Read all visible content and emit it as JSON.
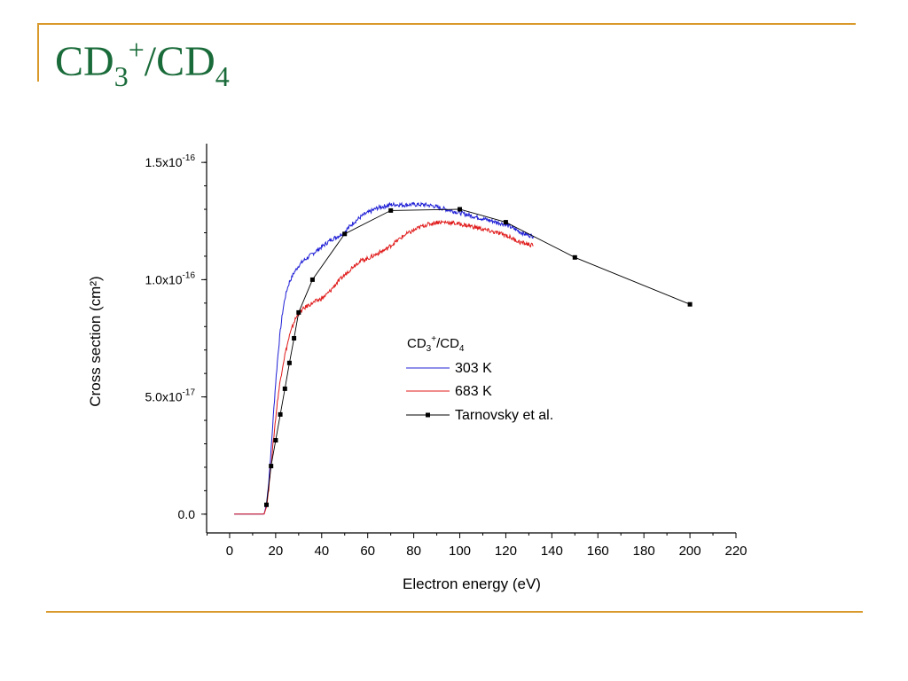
{
  "slide": {
    "title": {
      "base1": "CD",
      "sub1": "3",
      "sup1": "+",
      "slash": "/CD",
      "sub2": "4"
    }
  },
  "colors": {
    "accent_rule": "#d99a2b",
    "title": "#1a6b3a",
    "series_303": "#1f1fd6",
    "series_683": "#e01a1a",
    "series_ref": "#000000"
  },
  "chart_data": {
    "type": "line",
    "title": "",
    "xlabel": "Electron energy (eV)",
    "ylabel": "Cross section (cm²)",
    "xlim": [
      -10,
      220
    ],
    "ylim": [
      -8e-18,
      1.58e-16
    ],
    "x_ticks": [
      0,
      20,
      40,
      60,
      80,
      100,
      120,
      140,
      160,
      180,
      200,
      220
    ],
    "y_ticks": [
      {
        "value": 0.0,
        "label_base": "0.0",
        "label_exp": ""
      },
      {
        "value": 5e-17,
        "label_base": "5.0x10",
        "label_exp": "-17"
      },
      {
        "value": 1e-16,
        "label_base": "1.0x10",
        "label_exp": "-16"
      },
      {
        "value": 1.5e-16,
        "label_base": "1.5x10",
        "label_exp": "-16"
      }
    ],
    "legend": {
      "placement": "center-right",
      "title_base": "CD",
      "title_sub": "3",
      "title_sup": "+",
      "title_rest": "/CD",
      "title_sub2": "4"
    },
    "series": [
      {
        "name": "303 K",
        "style": "noisy-line",
        "x": [
          2,
          14,
          15,
          16,
          17,
          18,
          19,
          20,
          21,
          22,
          23,
          24,
          25,
          26,
          27,
          28,
          29,
          30,
          32,
          34,
          36,
          38,
          40,
          42,
          44,
          46,
          48,
          50,
          52,
          54,
          56,
          58,
          60,
          62,
          64,
          66,
          68,
          70,
          72,
          74,
          76,
          78,
          80,
          82,
          84,
          86,
          88,
          90,
          92,
          94,
          96,
          98,
          100,
          102,
          104,
          106,
          108,
          110,
          112,
          114,
          116,
          118,
          120,
          122,
          124,
          126,
          128,
          130,
          132
        ],
        "y": [
          0,
          0,
          1e-19,
          4e-18,
          1.4e-17,
          2.7e-17,
          4.2e-17,
          5.6e-17,
          6.8e-17,
          7.8e-17,
          8.6e-17,
          9.2e-17,
          9.6e-17,
          9.9e-17,
          1.01e-16,
          1.03e-16,
          1.045e-16,
          1.06e-16,
          1.08e-16,
          1.095e-16,
          1.11e-16,
          1.125e-16,
          1.14e-16,
          1.155e-16,
          1.17e-16,
          1.18e-16,
          1.19e-16,
          1.205e-16,
          1.225e-16,
          1.245e-16,
          1.26e-16,
          1.275e-16,
          1.285e-16,
          1.295e-16,
          1.305e-16,
          1.31e-16,
          1.315e-16,
          1.32e-16,
          1.32e-16,
          1.32e-16,
          1.318e-16,
          1.32e-16,
          1.32e-16,
          1.32e-16,
          1.32e-16,
          1.318e-16,
          1.315e-16,
          1.31e-16,
          1.305e-16,
          1.3e-16,
          1.295e-16,
          1.29e-16,
          1.285e-16,
          1.28e-16,
          1.275e-16,
          1.27e-16,
          1.265e-16,
          1.26e-16,
          1.255e-16,
          1.25e-16,
          1.245e-16,
          1.24e-16,
          1.235e-16,
          1.225e-16,
          1.215e-16,
          1.205e-16,
          1.195e-16,
          1.19e-16,
          1.185e-16
        ]
      },
      {
        "name": "683 K",
        "style": "noisy-line",
        "x": [
          2,
          14,
          15,
          16,
          17,
          18,
          19,
          20,
          21,
          22,
          23,
          24,
          25,
          26,
          27,
          28,
          29,
          30,
          32,
          34,
          36,
          38,
          40,
          42,
          44,
          46,
          48,
          50,
          52,
          54,
          56,
          58,
          60,
          62,
          64,
          66,
          68,
          70,
          72,
          74,
          76,
          78,
          80,
          82,
          84,
          86,
          88,
          90,
          92,
          94,
          96,
          98,
          100,
          102,
          104,
          106,
          108,
          110,
          112,
          114,
          116,
          118,
          120,
          122,
          124,
          126,
          128,
          130,
          132
        ],
        "y": [
          0,
          0,
          1e-19,
          3e-18,
          1.1e-17,
          2.1e-17,
          3.1e-17,
          4.1e-17,
          5e-17,
          5.7e-17,
          6.3e-17,
          6.8e-17,
          7.2e-17,
          7.6e-17,
          7.9e-17,
          8.2e-17,
          8.4e-17,
          8.55e-17,
          8.75e-17,
          8.9e-17,
          9e-17,
          9.1e-17,
          9.2e-17,
          9.35e-17,
          9.55e-17,
          9.8e-17,
          1e-16,
          1.02e-16,
          1.04e-16,
          1.06e-16,
          1.075e-16,
          1.085e-16,
          1.09e-16,
          1.1e-16,
          1.11e-16,
          1.12e-16,
          1.13e-16,
          1.145e-16,
          1.16e-16,
          1.175e-16,
          1.19e-16,
          1.2e-16,
          1.21e-16,
          1.22e-16,
          1.23e-16,
          1.235e-16,
          1.24e-16,
          1.245e-16,
          1.245e-16,
          1.245e-16,
          1.243e-16,
          1.24e-16,
          1.237e-16,
          1.233e-16,
          1.23e-16,
          1.225e-16,
          1.22e-16,
          1.215e-16,
          1.21e-16,
          1.205e-16,
          1.2e-16,
          1.195e-16,
          1.19e-16,
          1.18e-16,
          1.17e-16,
          1.16e-16,
          1.155e-16,
          1.15e-16,
          1.145e-16
        ]
      },
      {
        "name": "Tarnovsky et al.",
        "style": "line-square",
        "x": [
          16,
          18,
          20,
          22,
          24,
          26,
          28,
          30,
          36,
          50,
          70,
          100,
          120,
          150,
          200
        ],
        "y": [
          4e-18,
          2.05e-17,
          3.15e-17,
          4.25e-17,
          5.35e-17,
          6.45e-17,
          7.5e-17,
          8.6e-17,
          1e-16,
          1.195e-16,
          1.295e-16,
          1.3e-16,
          1.245e-16,
          1.095e-16,
          8.95e-17
        ]
      }
    ]
  }
}
